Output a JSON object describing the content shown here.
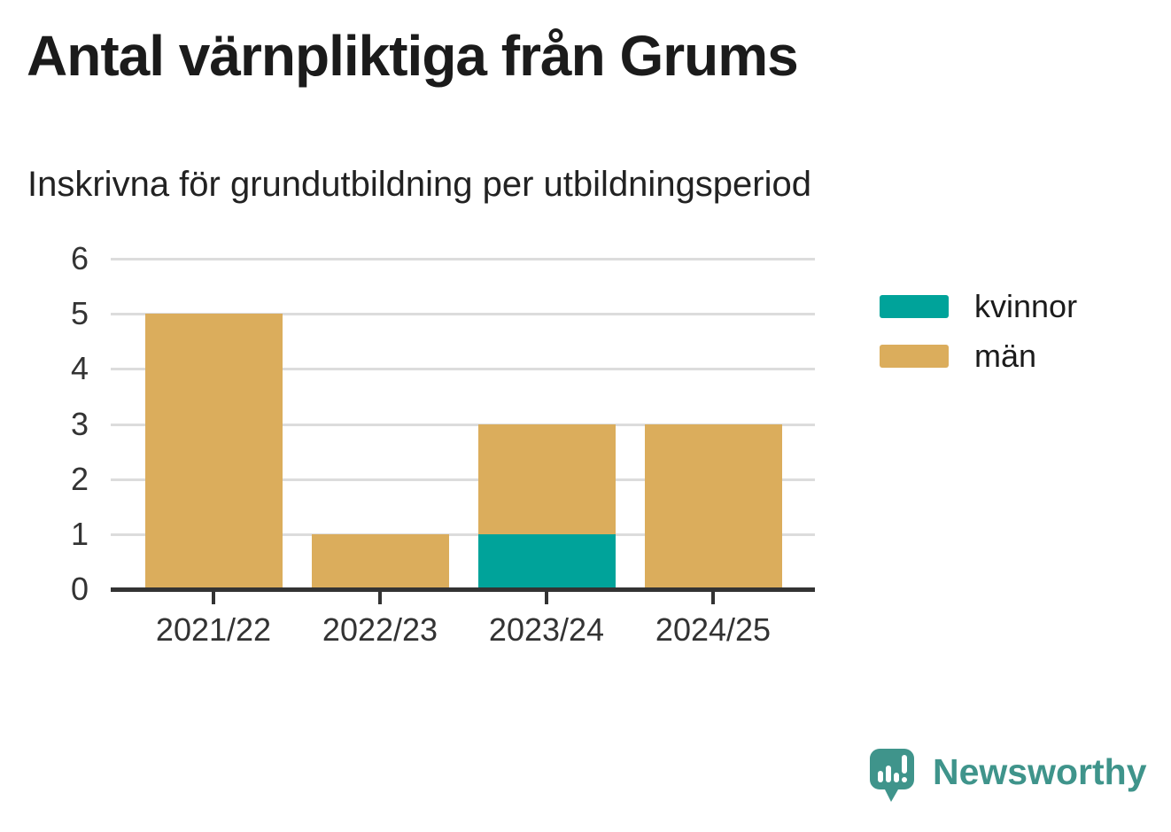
{
  "title": "Antal värnpliktiga från Grums",
  "subtitle": "Inskrivna för grundutbildning per utbildningsperiod",
  "chart_data": {
    "type": "bar",
    "stacked": true,
    "title": "Antal värnpliktiga från Grums",
    "subtitle": "Inskrivna för grundutbildning per utbildningsperiod",
    "categories": [
      "2021/22",
      "2022/23",
      "2023/24",
      "2024/25"
    ],
    "series": [
      {
        "name": "kvinnor",
        "color": "#00a39a",
        "values": [
          0,
          0,
          1,
          0
        ]
      },
      {
        "name": "män",
        "color": "#dbad5c",
        "values": [
          5,
          1,
          2,
          3
        ]
      }
    ],
    "totals": [
      5,
      1,
      3,
      3
    ],
    "xlabel": "",
    "ylabel": "",
    "ylim": [
      0,
      6
    ],
    "yticks": [
      0,
      1,
      2,
      3,
      4,
      5,
      6
    ],
    "grid": true,
    "legend_position": "right"
  },
  "legend": {
    "items": [
      {
        "label": "kvinnor",
        "color": "#00a39a"
      },
      {
        "label": "män",
        "color": "#dbad5c"
      }
    ]
  },
  "colors": {
    "kvinnor": "#00a39a",
    "man": "#dbad5c",
    "axis": "#333333",
    "gridline": "#dcdcdc",
    "brand": "#3f948b"
  },
  "branding": {
    "logo_text": "Newsworthy",
    "logo_icon": "newsworthy-speech-bubble-chart-icon"
  }
}
